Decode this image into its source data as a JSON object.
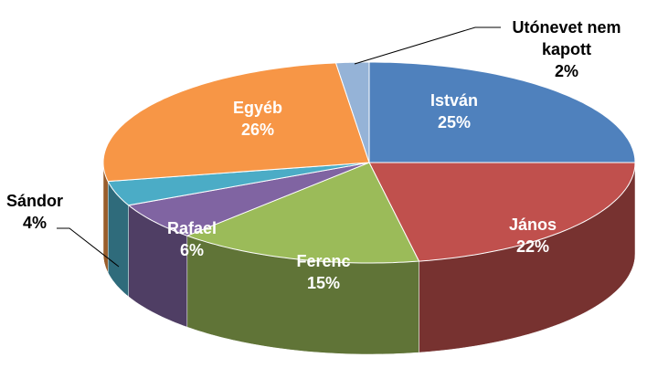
{
  "chart_data": {
    "type": "pie",
    "categories": [
      "István",
      "János",
      "Ferenc",
      "Rafael",
      "Sándor",
      "Egyéb",
      "Utónevet nem kapott"
    ],
    "values": [
      25,
      22,
      15,
      6,
      4,
      26,
      2
    ],
    "value_labels": [
      "25%",
      "22%",
      "15%",
      "6%",
      "4%",
      "26%",
      "2%"
    ],
    "colors": [
      "#4f81bd",
      "#c0504d",
      "#9bbb59",
      "#8064a2",
      "#4bacc6",
      "#f79646",
      "#95b3d7"
    ]
  }
}
